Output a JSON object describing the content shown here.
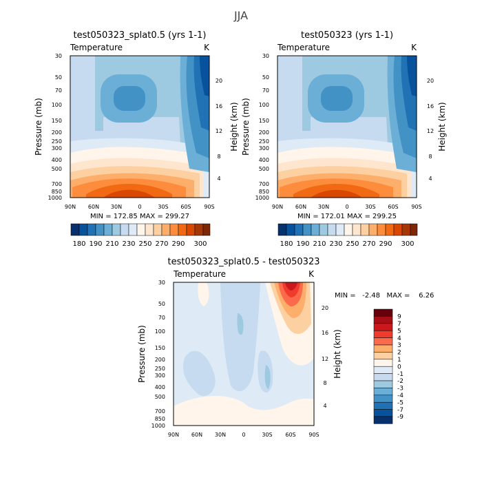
{
  "page_title": "JJA",
  "colors": {
    "cold": [
      "#08306b",
      "#08519c",
      "#2171b5",
      "#4292c6",
      "#6baed6",
      "#9ecae1",
      "#c6dbef",
      "#deebf7"
    ],
    "warm": [
      "#fff5eb",
      "#fee6ce",
      "#fdd0a2",
      "#fdae6b",
      "#fd8d3c",
      "#f16913",
      "#d94801",
      "#a63603",
      "#7f2704"
    ],
    "diff": [
      "#08306b",
      "#08519c",
      "#2171b5",
      "#4292c6",
      "#6baed6",
      "#9ecae1",
      "#c6dbef",
      "#deebf7",
      "#fff5eb",
      "#fdd0a2",
      "#fdae6b",
      "#fb6a4a",
      "#ef3b2c",
      "#cb181d",
      "#a50f15",
      "#67000d"
    ]
  },
  "chart_data": [
    {
      "type": "heatmap",
      "title": "test050323_splat0.5 (yrs 1-1)",
      "variable_label": "Temperature",
      "units": "K",
      "ylabel": "Pressure (mb)",
      "ylabel_right": "Height (km)",
      "x_tick_labels": [
        "90N",
        "60N",
        "30N",
        "0",
        "30S",
        "60S",
        "90S"
      ],
      "y_tick_labels": [
        "30",
        "50",
        "70",
        "100",
        "150",
        "200",
        "250",
        "300",
        "400",
        "500",
        "700",
        "850",
        "1000"
      ],
      "y_right_tick_labels": [
        "20",
        "16",
        "12",
        "8",
        "4"
      ],
      "min_max_text": "MIN = 172.85   MAX = 299.27",
      "colorbar_labels": [
        "180",
        "190",
        "210",
        "230",
        "250",
        "270",
        "290",
        "300"
      ]
    },
    {
      "type": "heatmap",
      "title": "test050323 (yrs 1-1)",
      "variable_label": "Temperature",
      "units": "K",
      "ylabel": "Pressure (mb)",
      "ylabel_right": "Height (km)",
      "x_tick_labels": [
        "90N",
        "60N",
        "30N",
        "0",
        "30S",
        "60S",
        "90S"
      ],
      "y_tick_labels": [
        "30",
        "50",
        "70",
        "100",
        "150",
        "200",
        "250",
        "300",
        "400",
        "500",
        "700",
        "850",
        "1000"
      ],
      "y_right_tick_labels": [
        "20",
        "16",
        "12",
        "8",
        "4"
      ],
      "min_max_text": "MIN = 172.01   MAX = 299.25",
      "colorbar_labels": [
        "180",
        "190",
        "210",
        "230",
        "250",
        "270",
        "290",
        "300"
      ]
    },
    {
      "type": "heatmap",
      "title": "test050323_splat0.5 - test050323",
      "variable_label": "Temperature",
      "units": "K",
      "ylabel": "Pressure (mb)",
      "ylabel_right": "Height (km)",
      "x_tick_labels": [
        "90N",
        "60N",
        "30N",
        "0",
        "30S",
        "60S",
        "90S"
      ],
      "y_tick_labels": [
        "30",
        "50",
        "70",
        "100",
        "150",
        "200",
        "250",
        "300",
        "400",
        "500",
        "700",
        "850",
        "1000"
      ],
      "y_right_tick_labels": [
        "20",
        "16",
        "12",
        "8",
        "4"
      ],
      "min_max_text": "MIN =   -2.48   MAX =    6.26",
      "colorbar_labels": [
        "9",
        "7",
        "5",
        "4",
        "3",
        "2",
        "1",
        "0",
        "-1",
        "-2",
        "-3",
        "-4",
        "-5",
        "-7",
        "-9"
      ]
    }
  ]
}
